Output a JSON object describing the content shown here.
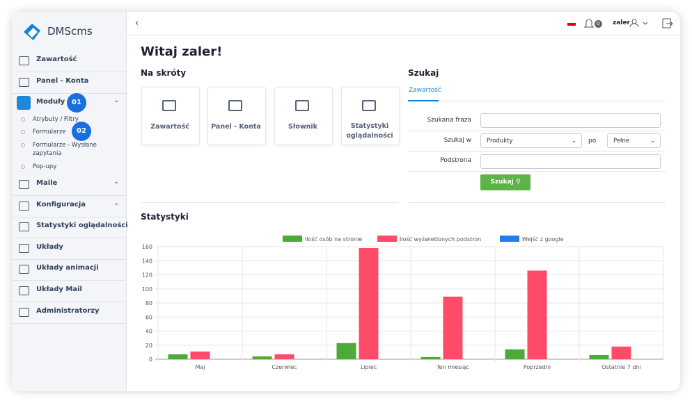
{
  "sidebar": {
    "logo": "DMScms",
    "items": [
      "Zawartość",
      "Panel - Konta",
      "Moduły",
      "Maile",
      "Konfiguracja",
      "Statystyki oglądalności",
      "Układy",
      "Układy animacji",
      "Układy Mail",
      "Administratorzy"
    ],
    "subitems": [
      "Atrybuty / Filtry",
      "Formularze",
      "Formularze - Wysłane zapytania",
      "Pop-upy"
    ],
    "badges": [
      "01",
      "02"
    ]
  },
  "topbar": {
    "notifications": "0",
    "user": "zaler"
  },
  "main": {
    "title": "Witaj zaler!",
    "shortcuts_title": "Na skróty",
    "shortcuts": [
      "Zawartość",
      "Panel - Konta",
      "Słownik",
      "Statystyki oglądalności"
    ],
    "search": {
      "title": "Szukaj",
      "tab": "Zawartość",
      "fields": [
        "Szukana fraza",
        "Szukaj w",
        "Podstrona"
      ],
      "select": "Produkty",
      "connector": "po",
      "mode": "Pełne",
      "button": "Szukaj"
    },
    "stats_title": "Statystyki"
  },
  "chart_data": {
    "type": "bar",
    "categories": [
      "Maj",
      "Czerwiec",
      "Lipiec",
      "Ten miesiąc",
      "Poprzedni",
      "Ostatnie 7 dni"
    ],
    "series": [
      {
        "name": "Ilość osób na stronie",
        "color": "#4caa36",
        "values": [
          7,
          4,
          23,
          3,
          14,
          6
        ]
      },
      {
        "name": "Ilość wyświetlonych podstron",
        "color": "#ff4a68",
        "values": [
          11,
          7,
          158,
          89,
          126,
          18
        ]
      },
      {
        "name": "Wejść z google",
        "color": "#1f7ff0",
        "values": [
          0,
          0,
          0,
          0,
          0,
          0
        ]
      }
    ],
    "ylim": [
      0,
      160
    ],
    "yticks": [
      0,
      20,
      40,
      60,
      80,
      100,
      120,
      140,
      160
    ],
    "grid": true,
    "legend": "top"
  }
}
